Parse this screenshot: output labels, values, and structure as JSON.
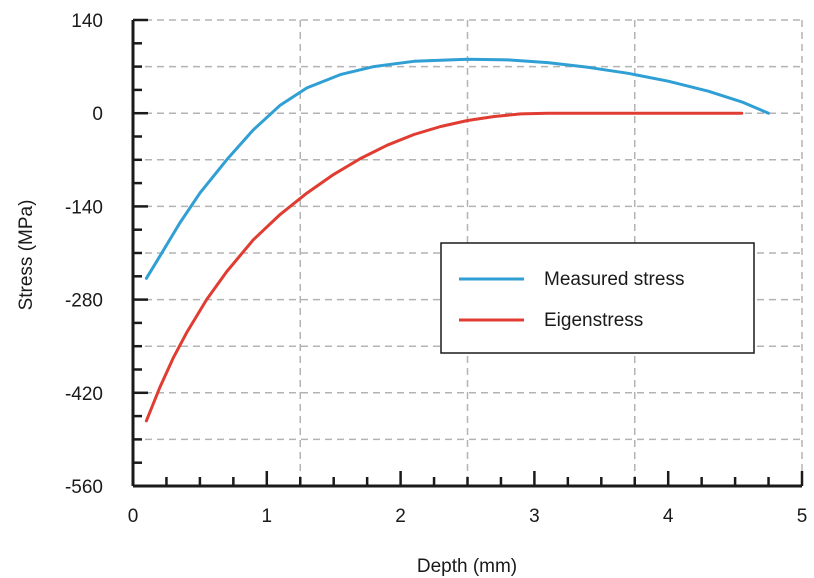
{
  "chart_data": {
    "type": "line",
    "xlabel": "Depth (mm)",
    "ylabel": "Stress (MPa)",
    "xlim": [
      0,
      5
    ],
    "ylim": [
      -560,
      140
    ],
    "x_ticks": [
      0,
      1,
      2,
      3,
      4,
      5
    ],
    "y_ticks": [
      140,
      0,
      -140,
      -280,
      -420,
      -560
    ],
    "x_minor_step": 0.25,
    "y_minor_step": 35,
    "grid": "dashed",
    "legend_position": "center-right",
    "series": [
      {
        "name": "Measured stress",
        "color": "#2f9fd4",
        "x": [
          0.1,
          0.2,
          0.35,
          0.5,
          0.7,
          0.9,
          1.1,
          1.3,
          1.55,
          1.8,
          2.1,
          2.5,
          2.8,
          3.1,
          3.4,
          3.7,
          4.0,
          4.3,
          4.55,
          4.75
        ],
        "y": [
          -248,
          -215,
          -165,
          -120,
          -70,
          -25,
          12,
          38,
          58,
          70,
          78,
          81,
          80,
          76,
          69,
          60,
          48,
          33,
          17,
          0
        ]
      },
      {
        "name": "Eigenstress",
        "color": "#e03c31",
        "x": [
          0.1,
          0.2,
          0.3,
          0.4,
          0.55,
          0.7,
          0.9,
          1.1,
          1.3,
          1.5,
          1.7,
          1.9,
          2.1,
          2.3,
          2.5,
          2.7,
          2.9,
          3.1,
          3.5,
          4.0,
          4.55
        ],
        "y": [
          -462,
          -412,
          -368,
          -330,
          -280,
          -238,
          -190,
          -152,
          -120,
          -92,
          -68,
          -48,
          -32,
          -20,
          -11,
          -5,
          -1,
          0,
          0,
          0,
          0
        ]
      }
    ]
  }
}
